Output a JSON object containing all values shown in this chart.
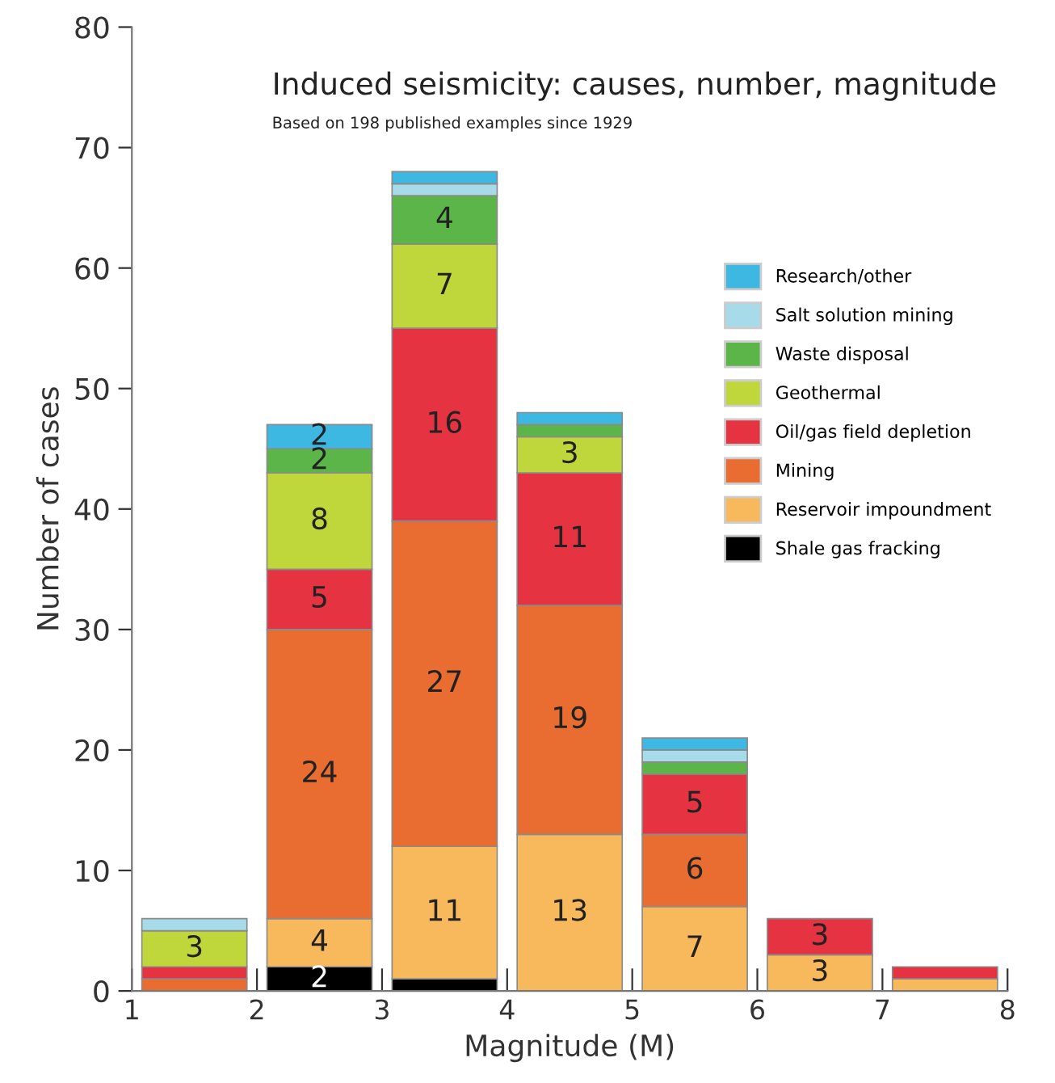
{
  "chart_data": {
    "type": "bar",
    "stacked": true,
    "title": "Induced seismicity: causes, number, magnitude",
    "subtitle": "Based on 198 published examples since 1929",
    "xlabel": "Magnitude (M)",
    "ylabel": "Number of cases",
    "x": [
      1.5,
      2.5,
      3.5,
      4.5,
      5.5,
      6.5,
      7.5
    ],
    "xlim": [
      1,
      8
    ],
    "xticks": [
      1,
      2,
      3,
      4,
      5,
      6,
      7,
      8
    ],
    "ylim": [
      0,
      80
    ],
    "yticks": [
      0,
      10,
      20,
      30,
      40,
      50,
      60,
      70,
      80
    ],
    "grid": false,
    "legend": "right",
    "series": [
      {
        "name": "Shale gas fracking",
        "color": "#000000",
        "values": [
          0,
          2,
          1,
          0,
          0,
          0,
          0
        ],
        "value_labels": [
          null,
          "2",
          null,
          null,
          null,
          null,
          null
        ]
      },
      {
        "name": "Reservoir impoundment",
        "color": "#f8b95c",
        "values": [
          0,
          4,
          11,
          13,
          7,
          3,
          1
        ],
        "value_labels": [
          null,
          "4",
          "11",
          "13",
          "7",
          "3",
          null
        ]
      },
      {
        "name": "Mining",
        "color": "#e96d31",
        "values": [
          1,
          24,
          27,
          19,
          6,
          0,
          0
        ],
        "value_labels": [
          null,
          "24",
          "27",
          "19",
          "6",
          null,
          null
        ]
      },
      {
        "name": "Oil/gas field depletion",
        "color": "#e53342",
        "values": [
          1,
          5,
          16,
          11,
          5,
          3,
          1
        ],
        "value_labels": [
          null,
          "5",
          "16",
          "11",
          "5",
          "3",
          null
        ]
      },
      {
        "name": "Geothermal",
        "color": "#bfd73b",
        "values": [
          3,
          8,
          7,
          3,
          0,
          0,
          0
        ],
        "value_labels": [
          "3",
          "8",
          "7",
          "3",
          null,
          null,
          null
        ]
      },
      {
        "name": "Waste disposal",
        "color": "#5cb548",
        "values": [
          0,
          2,
          4,
          1,
          1,
          0,
          0
        ],
        "value_labels": [
          null,
          "2",
          "4",
          null,
          null,
          null,
          null
        ]
      },
      {
        "name": "Salt solution mining",
        "color": "#a8dbe9",
        "values": [
          1,
          0,
          1,
          0,
          1,
          0,
          0
        ],
        "value_labels": [
          null,
          null,
          null,
          null,
          null,
          null,
          null
        ]
      },
      {
        "name": "Research/other",
        "color": "#3db8e3",
        "values": [
          0,
          2,
          1,
          1,
          1,
          0,
          0
        ],
        "value_labels": [
          null,
          "2",
          null,
          null,
          null,
          null,
          null
        ]
      }
    ]
  }
}
